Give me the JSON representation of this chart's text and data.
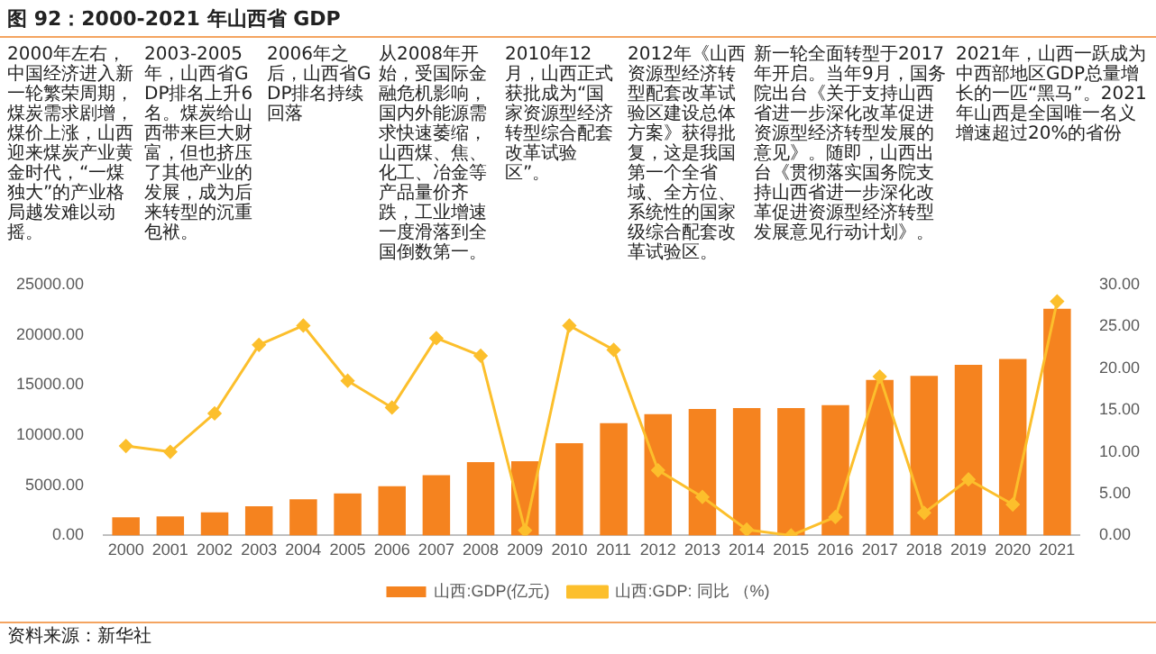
{
  "chart_data": {
    "type": "bar",
    "title": "图 92：2000-2021 年山西省 GDP",
    "categories": [
      "2000",
      "2001",
      "2002",
      "2003",
      "2004",
      "2005",
      "2006",
      "2007",
      "2008",
      "2009",
      "2010",
      "2011",
      "2012",
      "2013",
      "2014",
      "2015",
      "2016",
      "2017",
      "2018",
      "2019",
      "2020",
      "2021"
    ],
    "series": [
      {
        "name": "山西:GDP(亿元)",
        "color": "#f5831f",
        "values": [
          1800,
          1900,
          2300,
          2900,
          3600,
          4200,
          4900,
          6000,
          7300,
          7400,
          9200,
          11200,
          12100,
          12600,
          12700,
          12700,
          13000,
          15500,
          15900,
          17000,
          17600,
          22600
        ]
      },
      {
        "name": "山西:GDP: 同比 （%)",
        "type": "line",
        "axis": "y2",
        "color": "#fcbf2c",
        "marker": "diamond",
        "values": [
          10.7,
          10.0,
          14.6,
          22.8,
          25.1,
          18.5,
          15.3,
          23.6,
          21.5,
          0.6,
          25.1,
          22.2,
          7.8,
          4.6,
          0.7,
          0.0,
          2.2,
          19.0,
          2.7,
          6.7,
          3.7,
          28.0
        ]
      }
    ],
    "ylim": [
      0,
      25000
    ],
    "yticks": [
      {
        "value": 0,
        "label": "0.00"
      },
      {
        "value": 5000,
        "label": "5000.00"
      },
      {
        "value": 10000,
        "label": "10000.00"
      },
      {
        "value": 15000,
        "label": "15000.00"
      },
      {
        "value": 20000,
        "label": "20000.00"
      },
      {
        "value": 25000,
        "label": "25000.00"
      }
    ],
    "y2lim": [
      0,
      30
    ],
    "y2ticks": [
      {
        "value": 0,
        "label": "0.00"
      },
      {
        "value": 5,
        "label": "5.00"
      },
      {
        "value": 10,
        "label": "10.00"
      },
      {
        "value": 15,
        "label": "15.00"
      },
      {
        "value": 20,
        "label": "20.00"
      },
      {
        "value": 25,
        "label": "25.00"
      },
      {
        "value": 30,
        "label": "30.00"
      }
    ],
    "grid": false,
    "legend": "bottom",
    "annotations": [
      "2000年左右，中国经济进入新一轮繁荣周期，煤炭需求剧增，煤价上涨，山西迎来煤炭产业黄金时代，“一煤独大”的产业格局越发难以动摇。",
      "2003-2005年，山西省GDP排名上升6名。煤炭给山西带来巨大财富，但也挤压了其他产业的发展，成为后来转型的沉重包袱。",
      "2006年之后，山西省GDP排名持续回落",
      "从2008年开始，受国际金融危机影响，国内外能源需求快速萎缩，山西煤、焦、化工、冶金等产品量价齐跌，工业增速一度滑落到全国倒数第一。",
      "2010年12月，山西正式获批成为“国家资源型经济转型综合配套改革试验区”。",
      "2012年《山西资源型经济转型配套改革试验区建设总体方案》获得批复，这是我国第一个全省域、全方位、系统性的国家级综合配套改革试验区。",
      "新一轮全面转型于2017年开启。当年9月，国务院出台《关于支持山西省进一步深化改革促进资源型经济转型发展的意见》。随即，山西出台《贯彻落实国务院支持山西省进一步深化改革促进资源型经济转型发展意见行动计划》。",
      "2021年，山西一跃成为中西部地区GDP总量增长的一匹“黑马”。2021年山西是全国唯一名义增速超过20%的省份",
      "资料来源：新华社"
    ]
  }
}
